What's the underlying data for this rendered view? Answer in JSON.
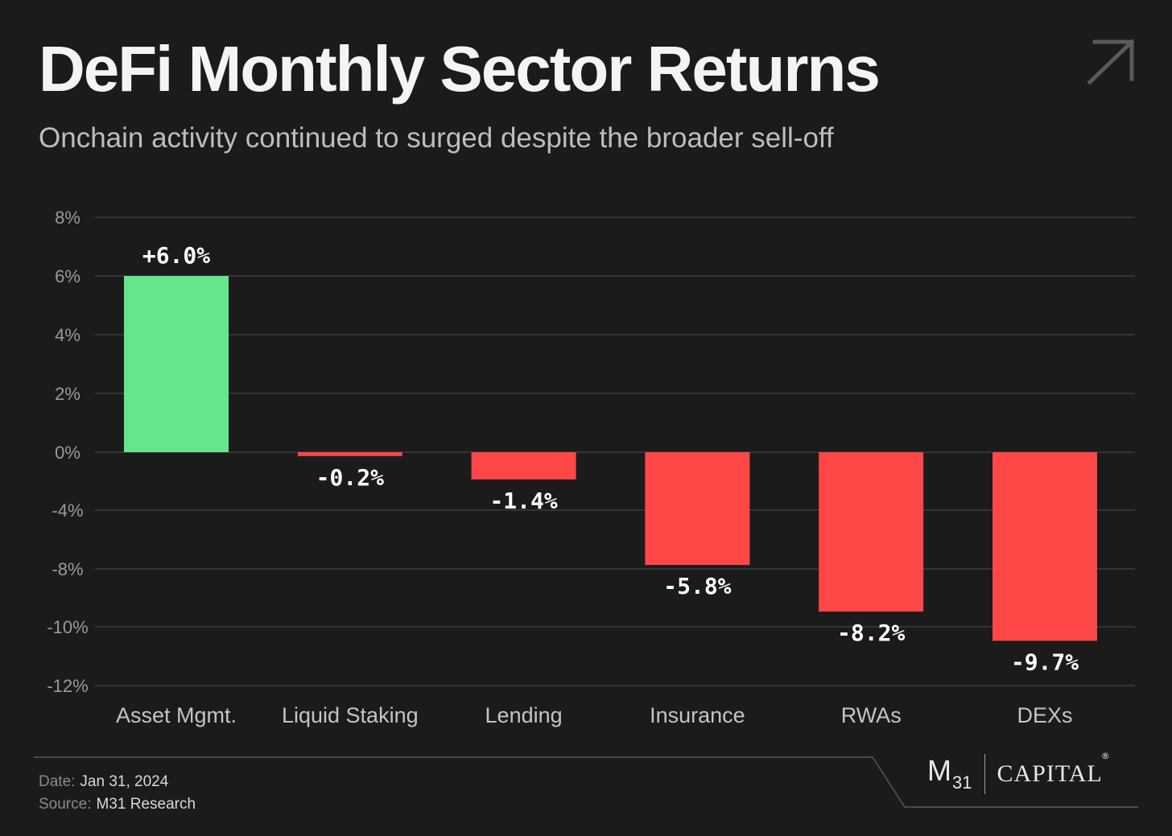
{
  "header": {
    "title": "DeFi Monthly Sector Returns",
    "subtitle": "Onchain activity continued to surged despite the broader sell-off",
    "arrow_icon": "arrow-up-right-icon"
  },
  "chart_data": {
    "type": "bar",
    "title": "DeFi Monthly Sector Returns",
    "subtitle": "Onchain activity continued to surged despite the broader sell-off",
    "xlabel": "",
    "ylabel": "",
    "ylim": [
      -12,
      8
    ],
    "yticks": [
      8,
      6,
      4,
      2,
      0,
      -4,
      -8,
      -10,
      -12
    ],
    "ytick_labels": [
      "8%",
      "6%",
      "4%",
      "2%",
      "0%",
      "-4%",
      "-8%",
      "-10%",
      "-12%"
    ],
    "grid": true,
    "categories": [
      "Asset Mgmt.",
      "Liquid Staking",
      "Lending",
      "Insurance",
      "RWAs",
      "DEXs"
    ],
    "values": [
      6.0,
      -0.2,
      -1.4,
      -5.8,
      -8.2,
      -9.7
    ],
    "value_labels": [
      "+6.0%",
      "-0.2%",
      "-1.4%",
      "-5.8%",
      "-8.2%",
      "-9.7%"
    ],
    "colors": {
      "positive": "#66e68a",
      "negative": "#ff4747",
      "grid": "#3c3c3c",
      "tick_text": "#9a9a9a",
      "category_text": "#c4c4c4",
      "label_text": "#ffffff"
    }
  },
  "footer": {
    "date_key": "Date:",
    "date_value": "Jan 31, 2024",
    "source_key": "Source:",
    "source_value": "M31 Research"
  },
  "logo": {
    "m": "M",
    "sub": "31",
    "capital": "CAPITAL",
    "reg": "®"
  }
}
